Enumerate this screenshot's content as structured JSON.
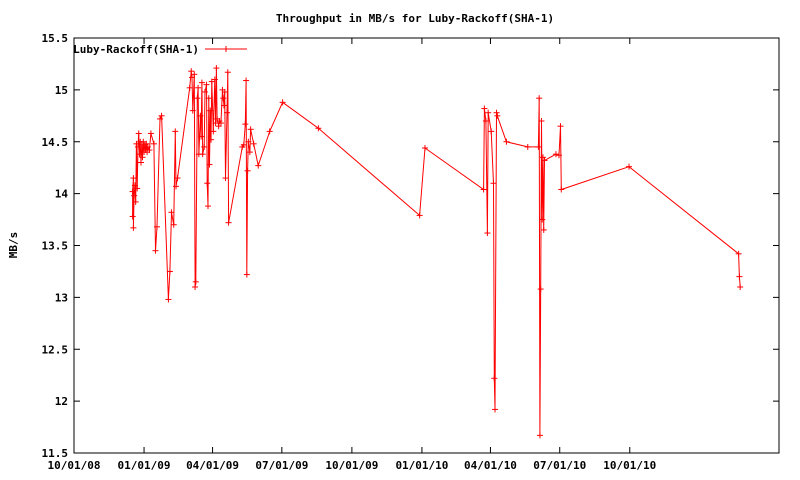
{
  "chart_data": {
    "type": "line",
    "title": "Throughput in MB/s for Luby-Rackoff(SHA-1)",
    "xlabel": "",
    "ylabel": "MB/s",
    "ylim": [
      11.5,
      15.5
    ],
    "yticks": [
      11.5,
      12,
      12.5,
      13,
      13.5,
      14,
      14.5,
      15,
      15.5
    ],
    "ytick_labels": [
      "11.5",
      "12",
      "12.5",
      "13",
      "13.5",
      "14",
      "14.5",
      "15",
      "15.5"
    ],
    "xlim": [
      "2008-10-01",
      "2011-04-15"
    ],
    "xticks": [
      "2008-10-01",
      "2009-01-01",
      "2009-04-01",
      "2009-07-01",
      "2009-10-01",
      "2010-01-01",
      "2010-04-01",
      "2010-07-01",
      "2010-10-01"
    ],
    "xtick_labels": [
      "10/01/08",
      "01/01/09",
      "04/01/09",
      "07/01/09",
      "10/01/09",
      "01/01/10",
      "04/01/10",
      "07/01/10",
      "10/01/10"
    ],
    "legend": "top-left",
    "grid": false,
    "series": [
      {
        "name": "Luby-Rackoff(SHA-1)",
        "color": "#ff0000",
        "marker": "plus",
        "points": [
          [
            "2008-12-17",
            13.78
          ],
          [
            "2008-12-17",
            14.02
          ],
          [
            "2008-12-18",
            14.15
          ],
          [
            "2008-12-18",
            13.67
          ],
          [
            "2008-12-19",
            13.98
          ],
          [
            "2008-12-20",
            14.08
          ],
          [
            "2008-12-21",
            13.92
          ],
          [
            "2008-12-22",
            14.48
          ],
          [
            "2008-12-23",
            14.05
          ],
          [
            "2008-12-24",
            14.45
          ],
          [
            "2008-12-25",
            14.58
          ],
          [
            "2008-12-26",
            14.38
          ],
          [
            "2008-12-27",
            14.5
          ],
          [
            "2008-12-28",
            14.3
          ],
          [
            "2008-12-29",
            14.47
          ],
          [
            "2008-12-30",
            14.35
          ],
          [
            "2008-12-31",
            14.5
          ],
          [
            "2009-01-01",
            14.4
          ],
          [
            "2009-01-02",
            14.47
          ],
          [
            "2009-01-03",
            14.42
          ],
          [
            "2009-01-04",
            14.48
          ],
          [
            "2009-01-05",
            14.4
          ],
          [
            "2009-01-06",
            14.45
          ],
          [
            "2009-01-08",
            14.42
          ],
          [
            "2009-01-10",
            14.58
          ],
          [
            "2009-01-14",
            14.48
          ],
          [
            "2009-01-16",
            13.45
          ],
          [
            "2009-01-18",
            13.68
          ],
          [
            "2009-01-22",
            14.72
          ],
          [
            "2009-01-24",
            14.75
          ],
          [
            "2009-02-02",
            12.98
          ],
          [
            "2009-02-04",
            13.25
          ],
          [
            "2009-02-06",
            13.82
          ],
          [
            "2009-02-09",
            13.7
          ],
          [
            "2009-02-11",
            14.6
          ],
          [
            "2009-02-12",
            14.07
          ],
          [
            "2009-02-14",
            14.15
          ],
          [
            "2009-03-02",
            15.02
          ],
          [
            "2009-03-04",
            15.18
          ],
          [
            "2009-03-05",
            15.12
          ],
          [
            "2009-03-06",
            14.8
          ],
          [
            "2009-03-08",
            15.15
          ],
          [
            "2009-03-09",
            13.1
          ],
          [
            "2009-03-10",
            13.15
          ],
          [
            "2009-03-12",
            14.92
          ],
          [
            "2009-03-13",
            15.02
          ],
          [
            "2009-03-14",
            14.38
          ],
          [
            "2009-03-16",
            14.75
          ],
          [
            "2009-03-17",
            14.55
          ],
          [
            "2009-03-18",
            15.07
          ],
          [
            "2009-03-19",
            14.38
          ],
          [
            "2009-03-21",
            14.45
          ],
          [
            "2009-03-22",
            14.98
          ],
          [
            "2009-03-24",
            15.05
          ],
          [
            "2009-03-25",
            14.1
          ],
          [
            "2009-03-26",
            13.88
          ],
          [
            "2009-03-27",
            14.92
          ],
          [
            "2009-03-28",
            14.28
          ],
          [
            "2009-03-29",
            14.8
          ],
          [
            "2009-03-30",
            14.52
          ],
          [
            "2009-03-31",
            15.08
          ],
          [
            "2009-04-02",
            14.6
          ],
          [
            "2009-04-04",
            15.1
          ],
          [
            "2009-04-05",
            14.68
          ],
          [
            "2009-04-06",
            15.21
          ],
          [
            "2009-04-07",
            14.72
          ],
          [
            "2009-04-09",
            14.65
          ],
          [
            "2009-04-10",
            14.7
          ],
          [
            "2009-04-12",
            14.68
          ],
          [
            "2009-04-14",
            15.0
          ],
          [
            "2009-04-15",
            14.92
          ],
          [
            "2009-04-16",
            14.85
          ],
          [
            "2009-04-17",
            14.98
          ],
          [
            "2009-04-18",
            14.15
          ],
          [
            "2009-04-20",
            14.78
          ],
          [
            "2009-04-21",
            15.17
          ],
          [
            "2009-04-22",
            13.72
          ],
          [
            "2009-05-10",
            14.45
          ],
          [
            "2009-05-12",
            14.47
          ],
          [
            "2009-05-14",
            14.67
          ],
          [
            "2009-05-15",
            15.09
          ],
          [
            "2009-05-16",
            13.22
          ],
          [
            "2009-05-17",
            14.22
          ],
          [
            "2009-05-18",
            14.5
          ],
          [
            "2009-05-20",
            14.4
          ],
          [
            "2009-05-21",
            14.62
          ],
          [
            "2009-05-25",
            14.48
          ],
          [
            "2009-05-31",
            14.27
          ],
          [
            "2009-06-15",
            14.6
          ],
          [
            "2009-07-02",
            14.88
          ],
          [
            "2009-08-18",
            14.63
          ],
          [
            "2009-12-29",
            13.79
          ],
          [
            "2010-01-05",
            14.44
          ],
          [
            "2010-03-23",
            14.04
          ],
          [
            "2010-03-24",
            14.82
          ],
          [
            "2010-03-26",
            14.7
          ],
          [
            "2010-03-28",
            13.62
          ],
          [
            "2010-03-29",
            14.78
          ],
          [
            "2010-04-02",
            14.6
          ],
          [
            "2010-04-05",
            14.1
          ],
          [
            "2010-04-06",
            12.22
          ],
          [
            "2010-04-07",
            11.92
          ],
          [
            "2010-04-09",
            14.78
          ],
          [
            "2010-04-10",
            14.75
          ],
          [
            "2010-04-22",
            14.5
          ],
          [
            "2010-05-20",
            14.45
          ],
          [
            "2010-06-03",
            14.45
          ],
          [
            "2010-06-04",
            14.92
          ],
          [
            "2010-06-05",
            11.67
          ],
          [
            "2010-06-06",
            13.08
          ],
          [
            "2010-06-07",
            14.7
          ],
          [
            "2010-06-08",
            13.75
          ],
          [
            "2010-06-09",
            14.35
          ],
          [
            "2010-06-10",
            13.65
          ],
          [
            "2010-06-11",
            14.32
          ],
          [
            "2010-06-26",
            14.38
          ],
          [
            "2010-06-30",
            14.37
          ],
          [
            "2010-07-02",
            14.65
          ],
          [
            "2010-07-03",
            14.04
          ],
          [
            "2010-09-30",
            14.26
          ],
          [
            "2011-02-21",
            13.42
          ],
          [
            "2011-02-22",
            13.2
          ],
          [
            "2011-02-23",
            13.1
          ]
        ]
      }
    ]
  }
}
